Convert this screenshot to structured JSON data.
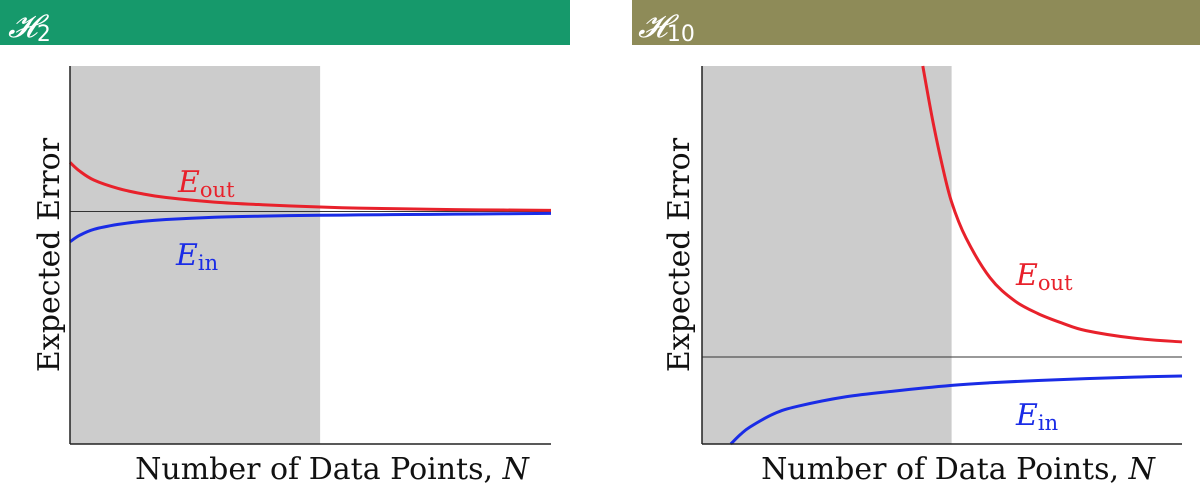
{
  "colors": {
    "header_left": "#16996b",
    "header_right": "#8e8b58",
    "shade": "#cccccc",
    "e_out": "#e8212b",
    "e_in": "#1a2ce6",
    "axis": "#222222"
  },
  "chart_data": [
    {
      "type": "line",
      "panel_label": {
        "main": "𝓗",
        "sub": "2"
      },
      "xlabel": "Number of Data Points, N",
      "ylabel": "Expected Error",
      "xlim": [
        0,
        1
      ],
      "ylim": [
        0,
        1
      ],
      "shaded_region": [
        0,
        0.52
      ],
      "reference_line_y": 0.615,
      "series": [
        {
          "name": "E_out",
          "label_main": "E",
          "label_sub": "out",
          "color": "#e8212b",
          "x": [
            0.0,
            0.02,
            0.05,
            0.1,
            0.15,
            0.2,
            0.3,
            0.4,
            0.52,
            0.6,
            0.7,
            0.8,
            0.9,
            1.0
          ],
          "y": [
            0.745,
            0.722,
            0.698,
            0.676,
            0.662,
            0.652,
            0.64,
            0.633,
            0.627,
            0.624,
            0.622,
            0.62,
            0.619,
            0.618
          ]
        },
        {
          "name": "E_in",
          "label_main": "E",
          "label_sub": "in",
          "color": "#1a2ce6",
          "x": [
            0.0,
            0.02,
            0.05,
            0.1,
            0.15,
            0.2,
            0.3,
            0.4,
            0.52,
            0.6,
            0.7,
            0.8,
            0.9,
            1.0
          ],
          "y": [
            0.535,
            0.552,
            0.568,
            0.581,
            0.589,
            0.594,
            0.6,
            0.603,
            0.605,
            0.606,
            0.607,
            0.608,
            0.609,
            0.61
          ]
        }
      ]
    },
    {
      "type": "line",
      "panel_label": {
        "main": "𝓗",
        "sub": "10"
      },
      "xlabel": "Number of Data Points, N",
      "ylabel": "Expected Error",
      "xlim": [
        0,
        1
      ],
      "ylim": [
        0,
        1
      ],
      "shaded_region": [
        0,
        0.52
      ],
      "reference_line_y": 0.23,
      "series": [
        {
          "name": "E_out",
          "label_main": "E",
          "label_sub": "out",
          "color": "#e8212b",
          "x": [
            0.46,
            0.48,
            0.5,
            0.52,
            0.55,
            0.6,
            0.65,
            0.7,
            0.75,
            0.8,
            0.9,
            1.0
          ],
          "y": [
            1.0,
            0.86,
            0.74,
            0.64,
            0.545,
            0.44,
            0.38,
            0.345,
            0.32,
            0.3,
            0.28,
            0.27
          ]
        },
        {
          "name": "E_in",
          "label_main": "E",
          "label_sub": "in",
          "color": "#1a2ce6",
          "x": [
            0.06,
            0.08,
            0.1,
            0.15,
            0.2,
            0.3,
            0.4,
            0.52,
            0.6,
            0.7,
            0.8,
            0.9,
            1.0
          ],
          "y": [
            0.0,
            0.025,
            0.045,
            0.08,
            0.1,
            0.125,
            0.14,
            0.155,
            0.162,
            0.168,
            0.173,
            0.177,
            0.18
          ]
        }
      ]
    }
  ]
}
